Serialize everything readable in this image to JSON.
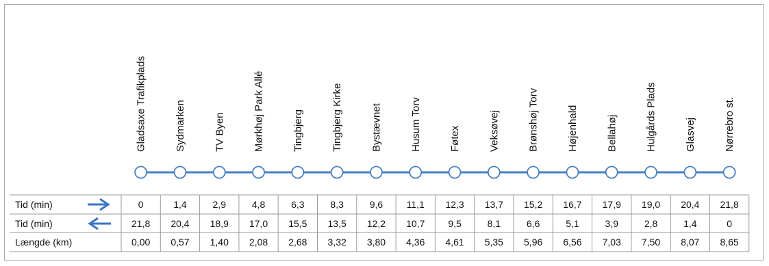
{
  "stops": [
    "Gladsaxe Trafikplads",
    "Sydmarken",
    "TV Byen",
    "Mørkhøj Park Allé",
    "Tingbjerg",
    "Tingbjerg Kirke",
    "Bystævnet",
    "Husum Torv",
    "Føtex",
    "Veksøvej",
    "Brønshøj Torv",
    "Højenhald",
    "Bellahøj",
    "Hulgårds Plads",
    "Glasvej",
    "Nørrebro st."
  ],
  "rows": [
    {
      "label": "Tid (min)",
      "arrow": "right-arrow-icon",
      "values": [
        "0",
        "1,4",
        "2,9",
        "4,8",
        "6,3",
        "8,3",
        "9,6",
        "11,1",
        "12,3",
        "13,7",
        "15,2",
        "16,7",
        "17,9",
        "19,0",
        "20,4",
        "21,8"
      ]
    },
    {
      "label": "Tid (min)",
      "arrow": "left-arrow-icon",
      "values": [
        "21,8",
        "20,4",
        "18,9",
        "17,0",
        "15,5",
        "13,5",
        "12,2",
        "10,7",
        "9,5",
        "8,1",
        "6,6",
        "5,1",
        "3,9",
        "2,8",
        "1,4",
        "0"
      ]
    },
    {
      "label": "Længde (km)",
      "arrow": "",
      "values": [
        "0,00",
        "0,57",
        "1,40",
        "2,08",
        "2,68",
        "3,32",
        "3,80",
        "4,36",
        "4,61",
        "5,35",
        "5,96",
        "6,56",
        "7,03",
        "7,50",
        "8,07",
        "8,65"
      ]
    }
  ],
  "colors": {
    "line": "#4a7fc1",
    "arrow": "#3a74c2",
    "node_fill": "#ffffff",
    "grid": "#9a9a9a"
  }
}
